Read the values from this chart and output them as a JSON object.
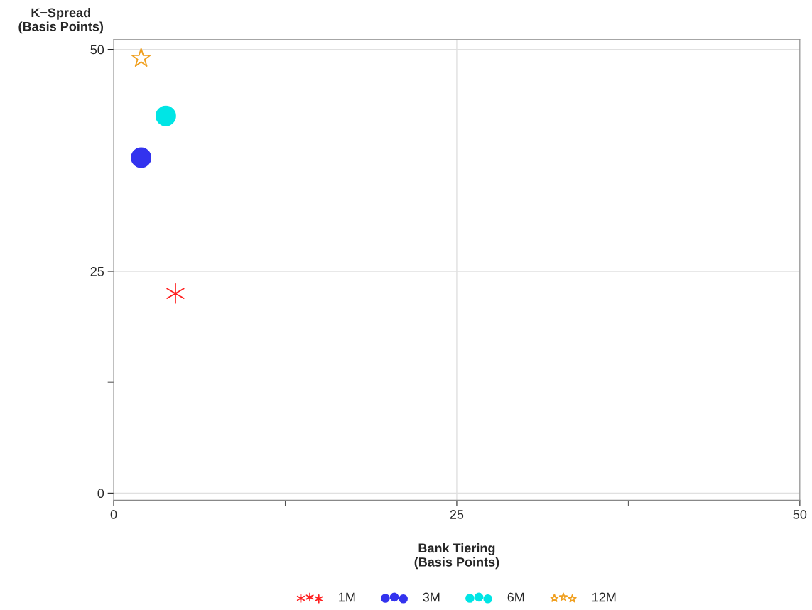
{
  "chart_data": {
    "type": "scatter",
    "xlabel": "Bank Tiering\n(Basis Points)",
    "ylabel": "K−Spread\n(Basis Points)",
    "xlim": [
      0,
      50
    ],
    "ylim": [
      -0.8,
      51.1
    ],
    "xticks": [
      0,
      {
        "value": 12.5,
        "label": null
      },
      25,
      {
        "value": 37.5,
        "label": null
      },
      50
    ],
    "yticks": [
      0,
      {
        "value": 12.5,
        "label": null
      },
      25,
      50
    ],
    "grid": true,
    "legend": "bottom",
    "series": [
      {
        "name": "1M",
        "color": "#ff2020",
        "marker": "cross",
        "x": [
          4.5
        ],
        "values": [
          22.5
        ]
      },
      {
        "name": "3M",
        "color": "#3333ee",
        "marker": "circle",
        "x": [
          2.0
        ],
        "values": [
          37.8
        ]
      },
      {
        "name": "6M",
        "color": "#00e5e5",
        "marker": "circle",
        "x": [
          3.8
        ],
        "values": [
          42.5
        ]
      },
      {
        "name": "12M",
        "color": "#f0a020",
        "marker": "star",
        "x": [
          2.0
        ],
        "values": [
          49.0
        ]
      }
    ]
  }
}
